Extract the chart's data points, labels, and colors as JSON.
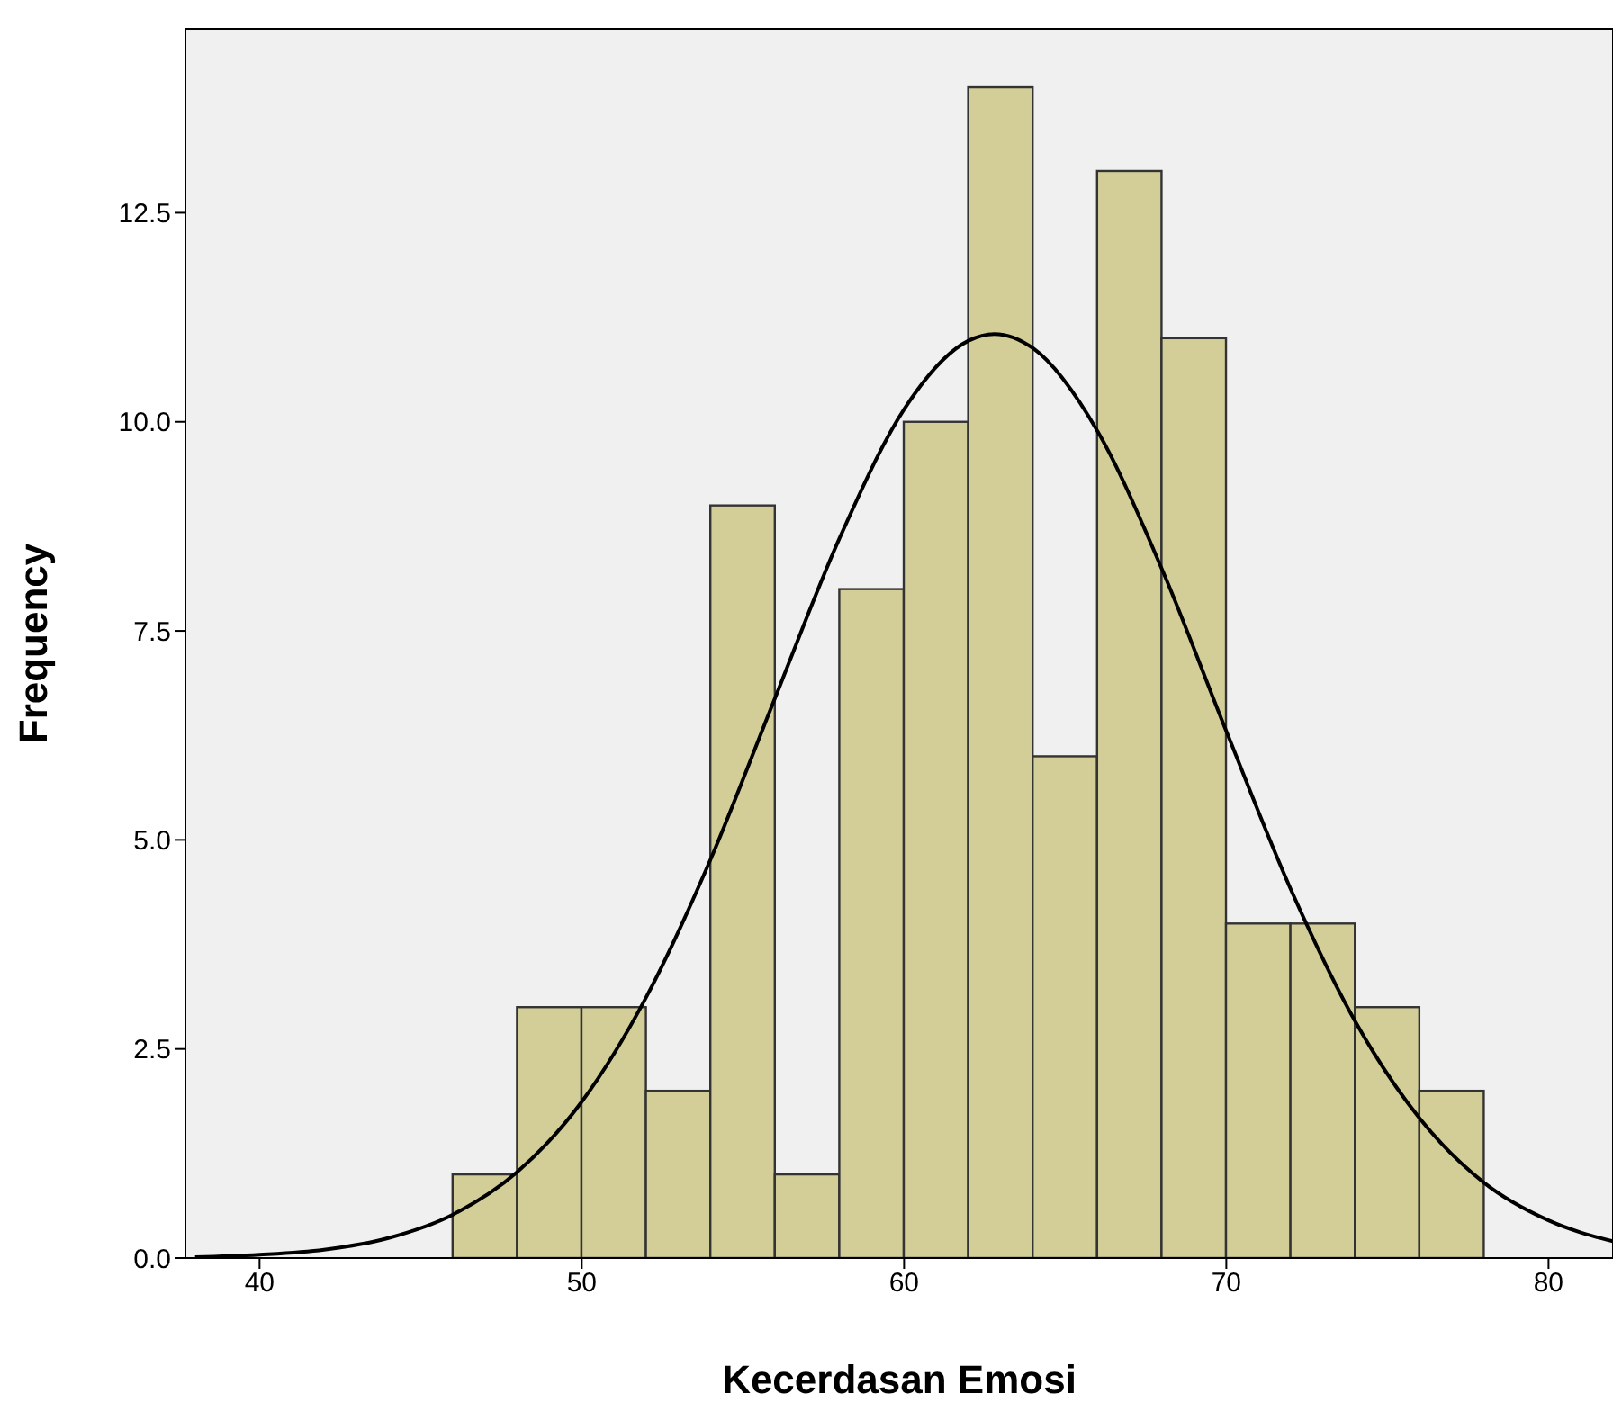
{
  "chart_data": {
    "type": "histogram",
    "xlabel": "Kecerdasan Emosi",
    "ylabel": "Frequency",
    "bins": [
      46,
      48,
      50,
      52,
      54,
      56,
      58,
      60,
      62,
      64,
      66,
      68,
      70,
      72,
      74,
      76,
      78
    ],
    "values": [
      1,
      3,
      3,
      2,
      9,
      1,
      8,
      10,
      14,
      6,
      13,
      11,
      4,
      4,
      3,
      2
    ],
    "color": "#d3ce97",
    "series": [
      {
        "type": "line",
        "color": "#000000",
        "x": [
          38,
          40,
          42,
          44,
          46,
          48,
          50,
          52,
          54,
          56,
          58,
          60,
          62,
          62.8,
          64,
          66,
          68,
          70,
          72,
          74,
          76,
          78,
          80,
          82
        ],
        "values": [
          0.01,
          0.04,
          0.1,
          0.24,
          0.52,
          1.03,
          1.87,
          3.12,
          4.77,
          6.7,
          8.61,
          10.15,
          10.97,
          11.05,
          10.88,
          9.89,
          8.24,
          6.3,
          4.41,
          2.83,
          1.67,
          0.9,
          0.45,
          0.2
        ]
      }
    ],
    "xlim": [
      37.7,
      82
    ],
    "xticks": [
      40,
      50,
      60,
      70,
      80
    ],
    "ylim": [
      0,
      14.7
    ],
    "yticks": [
      {
        "value": 0,
        "label": "0.0"
      },
      {
        "value": 2.5,
        "label": "2.5"
      },
      {
        "value": 5,
        "label": "5.0"
      },
      {
        "value": 7.5,
        "label": "7.5"
      },
      {
        "value": 10,
        "label": "10.0"
      },
      {
        "value": 12.5,
        "label": "12.5"
      }
    ],
    "marker": "none"
  }
}
